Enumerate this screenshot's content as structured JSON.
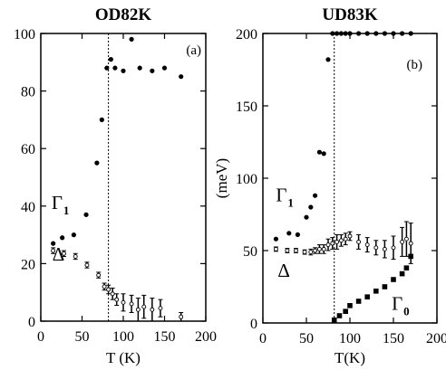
{
  "chart_data": [
    {
      "type": "scatter",
      "title": "OD82K",
      "annotation": "(a)",
      "xlabel": "T (K)",
      "ylabel": "",
      "xlim": [
        0,
        200
      ],
      "ylim": [
        0,
        100
      ],
      "xticks": [
        0,
        50,
        100,
        150,
        200
      ],
      "yticks": [
        0,
        20,
        40,
        60,
        80,
        100
      ],
      "vline_x": 82,
      "labels": [
        {
          "base": "Γ",
          "sub": "1",
          "x": 13,
          "y": 39
        },
        {
          "base": "Δ",
          "sub": "",
          "x": 14,
          "y": 21
        }
      ],
      "series": [
        {
          "marker": "filled-circle",
          "x": [
            15,
            26,
            40,
            55,
            68,
            74,
            80,
            85,
            90,
            100,
            110,
            120,
            135,
            150,
            170
          ],
          "y": [
            27,
            29,
            30,
            37,
            55,
            70,
            88,
            91,
            88,
            87,
            98,
            88,
            87,
            88,
            85
          ]
        },
        {
          "marker": "open-circle-errorbar",
          "x": [
            15,
            28,
            42,
            56,
            70,
            77,
            82,
            87,
            92,
            100,
            110,
            118,
            125,
            135,
            145,
            170
          ],
          "y": [
            24.5,
            23.5,
            22.5,
            19.5,
            16,
            12,
            11,
            9.5,
            7.5,
            6.5,
            6,
            4,
            5,
            4,
            4.5,
            1.5
          ],
          "err": [
            1,
            1,
            1,
            1,
            1,
            1.2,
            1.5,
            2,
            2,
            3,
            3,
            4,
            4,
            4,
            3,
            1.5
          ]
        }
      ]
    },
    {
      "type": "scatter",
      "title": "UD83K",
      "annotation": "(b)",
      "xlabel": "T(K)",
      "ylabel": "(meV)",
      "xlim": [
        0,
        200
      ],
      "ylim": [
        0,
        200
      ],
      "xticks": [
        0,
        50,
        100,
        150,
        200
      ],
      "yticks": [
        0,
        50,
        100,
        150,
        200
      ],
      "vline_x": 82,
      "labels": [
        {
          "base": "Γ",
          "sub": "1",
          "x": 15,
          "y": 84
        },
        {
          "base": "Δ",
          "sub": "",
          "x": 17,
          "y": 32
        },
        {
          "base": "Γ",
          "sub": "0",
          "x": 148,
          "y": 9
        }
      ],
      "series": [
        {
          "marker": "filled-circle",
          "x": [
            15,
            30,
            40,
            50,
            55,
            60,
            65,
            70,
            75,
            80,
            85,
            90,
            95,
            100,
            110,
            120,
            130,
            140,
            150,
            160,
            170
          ],
          "y": [
            58,
            62,
            61,
            73,
            80,
            88,
            118,
            117,
            182,
            200,
            200,
            200,
            200,
            200,
            200,
            200,
            200,
            200,
            200,
            200,
            200
          ]
        },
        {
          "marker": "open-circle-errorbar",
          "x": [
            15,
            28,
            38,
            48,
            55,
            60,
            65,
            70,
            75,
            80,
            85,
            90,
            95,
            100,
            110,
            120,
            130,
            140,
            150,
            160,
            165,
            170
          ],
          "y": [
            51,
            50,
            50,
            49,
            49,
            50,
            51,
            51,
            54,
            55,
            56,
            57,
            58,
            60,
            56,
            54,
            52,
            51,
            52,
            56,
            58,
            55
          ],
          "err": [
            1.5,
            1.5,
            1.5,
            1.5,
            2,
            2,
            3,
            3,
            4,
            4,
            5,
            4,
            4,
            3,
            5,
            5,
            5,
            6,
            8,
            10,
            12,
            14
          ]
        },
        {
          "marker": "filled-square",
          "x": [
            82,
            88,
            95,
            100,
            110,
            120,
            130,
            140,
            150,
            160,
            165,
            170
          ],
          "y": [
            2,
            5,
            8,
            12,
            15,
            18,
            22,
            25,
            30,
            34,
            38,
            46
          ]
        }
      ]
    }
  ]
}
